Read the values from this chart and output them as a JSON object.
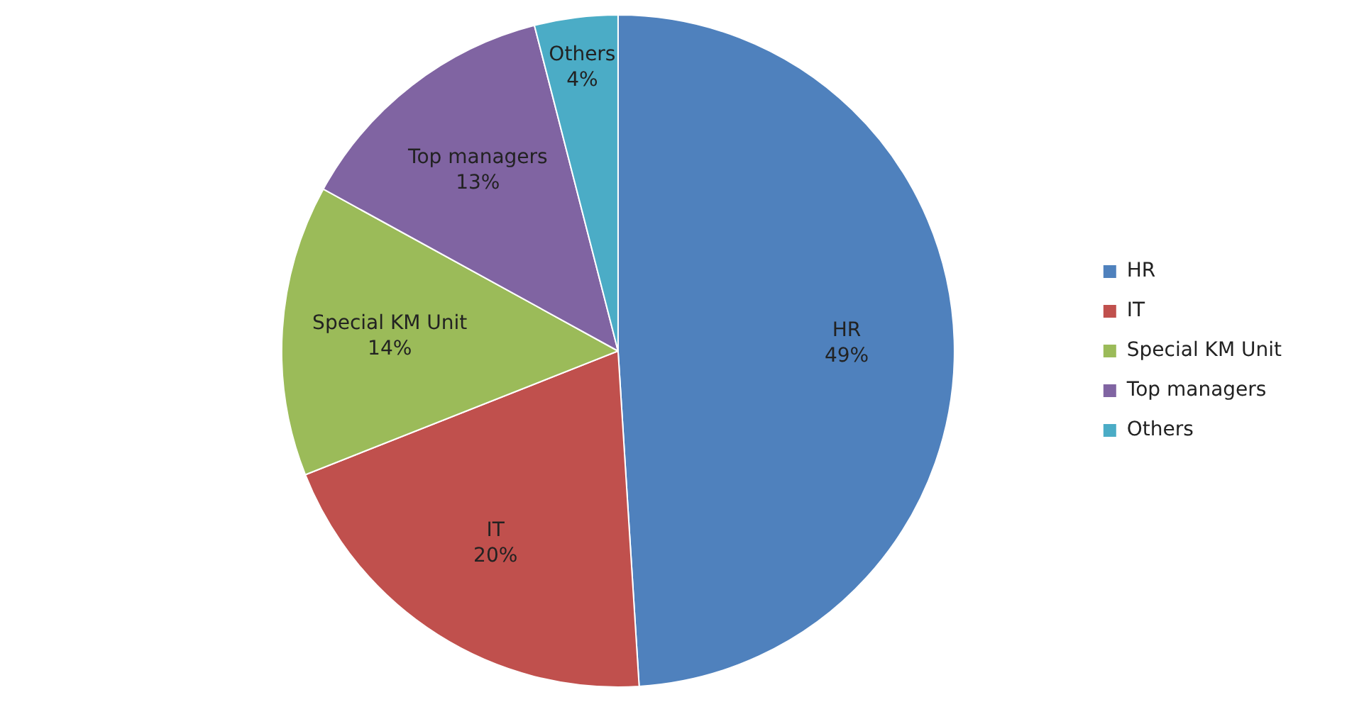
{
  "chart_data": {
    "type": "pie",
    "categories": [
      "HR",
      "IT",
      "Special KM Unit",
      "Top managers",
      "Others"
    ],
    "values": [
      49,
      20,
      14,
      13,
      4
    ],
    "colors": [
      "#4f81bd",
      "#c0504d",
      "#9bbb59",
      "#8064a2",
      "#4bacc6"
    ],
    "value_labels": [
      "49%",
      "20%",
      "14%",
      "13%",
      "4%"
    ],
    "legend": "right"
  }
}
